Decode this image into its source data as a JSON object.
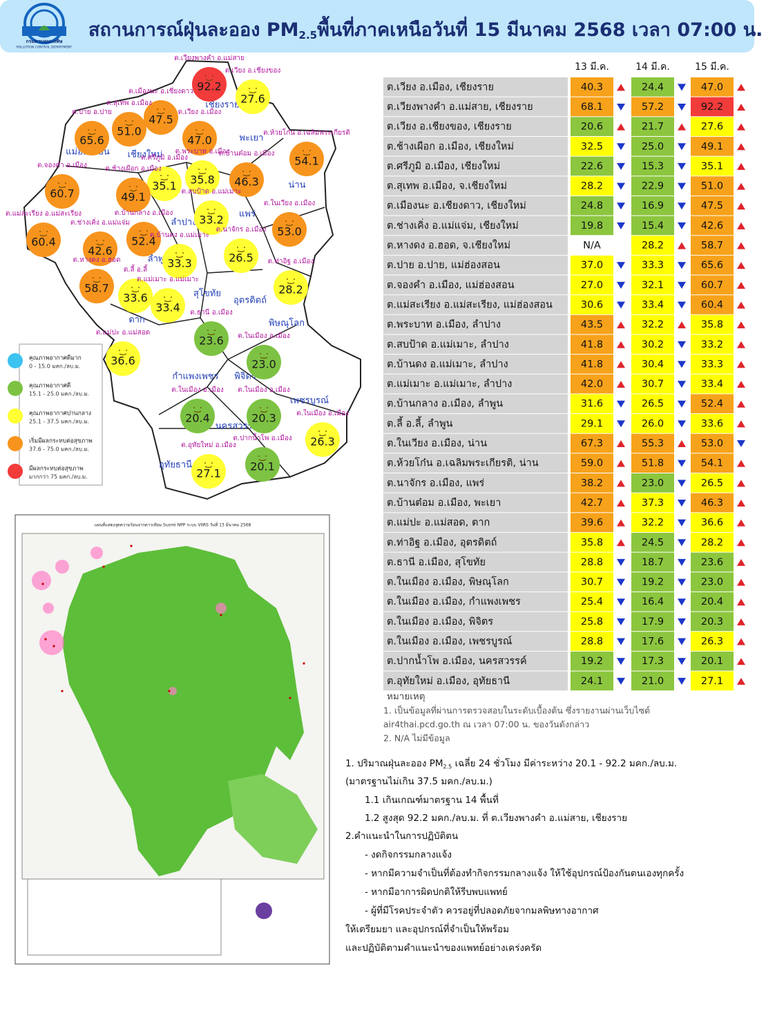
{
  "header": {
    "logo_th": "กรมควบคุมมลพิษ",
    "logo_en": "POLLUTION CONTROL DEPARTMENT",
    "title": "สถานการณ์ฝุ่นละออง PM",
    "title_sub": "2.5",
    "title_rest": "พื้นที่ภาคเหนือวันที่ 15 มีนาคม 2568 เวลา 07:00 น."
  },
  "map": {
    "provinces": [
      "เชียงราย",
      "พะเยา",
      "แม่ฮ่องสอน",
      "เชียงใหม่",
      "น่าน",
      "ลำปาง",
      "แพร่",
      "ลำพูน",
      "อุตรดิตถ์",
      "สุโขทัย",
      "ตาก",
      "พิษณุโลก",
      "กำแพงเพชร",
      "พิจิตร",
      "นครสวรรค์",
      "เพชรบูรณ์",
      "อุทัยธานี"
    ],
    "stations": [
      {
        "label": "ต.เวียงพางคำ อ.แม่สาย",
        "value": "92.2",
        "color": "#f23b3b"
      },
      {
        "label": "ต.เวียง อ.เชียงของ",
        "value": "27.6",
        "color": "#ffff33"
      },
      {
        "label": "ต.เมืองนะ อ.เชียงดาว",
        "value": "47.5",
        "color": "#f7941d"
      },
      {
        "label": "ต.สุเทพ อ.เมือง",
        "value": "51.0",
        "color": "#f7941d"
      },
      {
        "label": "ต.ปาย อ.ปาย",
        "value": "65.6",
        "color": "#f7941d"
      },
      {
        "label": "ต.เวียง อ.เมือง",
        "value": "47.0",
        "color": "#f7941d"
      },
      {
        "label": "ต.ห้วยโก๋น อ.เฉลิมพระเกียรติ",
        "value": "54.1",
        "color": "#f7941d"
      },
      {
        "label": "ต.ศรีภูมิ อ.เมือง",
        "value": "35.1",
        "color": "#ffff33"
      },
      {
        "label": "ต.ช้างเผือก อ.เมือง",
        "value": "49.1",
        "color": "#f7941d"
      },
      {
        "label": "ต.พระบาท อ.เมือง",
        "value": "35.8",
        "color": "#ffff33"
      },
      {
        "label": "ต.บ้านต๋อม อ.เมือง",
        "value": "46.3",
        "color": "#f7941d"
      },
      {
        "label": "ต.จองคำ อ.เมือง",
        "value": "60.7",
        "color": "#f7941d"
      },
      {
        "label": "ต.สบป้าด อ.แม่เมาะ",
        "value": "33.2",
        "color": "#ffff33"
      },
      {
        "label": "ต.ในเวียง อ.เมือง",
        "value": "53.0",
        "color": "#f7941d"
      },
      {
        "label": "ต.แม่สะเรียง อ.แม่สะเรียง",
        "value": "60.4",
        "color": "#f7941d"
      },
      {
        "label": "ต.ช่างเคิ่ง อ.แม่แจ่ม",
        "value": "42.6",
        "color": "#f7941d"
      },
      {
        "label": "ต.บ้านกลาง อ.เมือง",
        "value": "52.4",
        "color": "#f7941d"
      },
      {
        "label": "ต.บ้านดง อ.แม่เมาะ",
        "value": "33.3",
        "color": "#ffff33"
      },
      {
        "label": "ต.นาจักร อ.เมือง",
        "value": "26.5",
        "color": "#ffff33"
      },
      {
        "label": "ต.หางดง อ.ฮอด",
        "value": "58.7",
        "color": "#f7941d"
      },
      {
        "label": "ต.ลี้ อ.ลี้",
        "value": "33.6",
        "color": "#ffff33"
      },
      {
        "label": "ต.แม่เมาะ อ.แม่เมาะ",
        "value": "33.4",
        "color": "#ffff33"
      },
      {
        "label": "ต.ท่าอิฐ อ.เมือง",
        "value": "28.2",
        "color": "#ffff33"
      },
      {
        "label": "ต.ธานี อ.เมือง",
        "value": "23.6",
        "color": "#7dc242"
      },
      {
        "label": "ต.แม่ปะ อ.แม่สอด",
        "value": "36.6",
        "color": "#ffff33"
      },
      {
        "label": "ต.ในเมือง อ.เมือง",
        "value": "23.0",
        "color": "#7dc242"
      },
      {
        "label": "ต.ในเมือง อ.เมือง",
        "value": "20.4",
        "color": "#7dc242"
      },
      {
        "label": "ต.ในเมือง อ.เมือง",
        "value": "20.3",
        "color": "#7dc242"
      },
      {
        "label": "ต.ในเมือง อ.เมือง",
        "value": "26.3",
        "color": "#ffff33"
      },
      {
        "label": "ต.ปากน้ำโพ อ.เมือง",
        "value": "20.1",
        "color": "#7dc242"
      },
      {
        "label": "ต.อุทัยใหม่ อ.เมือง",
        "value": "27.1",
        "color": "#ffff33"
      }
    ],
    "legend": [
      {
        "label": "คุณภาพอากาศดีมาก",
        "range": "0 - 15.0 มคก./ลบ.ม.",
        "color": "#3cc3f0"
      },
      {
        "label": "คุณภาพอากาศดี",
        "range": "15.1 - 25.0 มคก./ลบ.ม.",
        "color": "#7dc242"
      },
      {
        "label": "คุณภาพอากาศปานกลาง",
        "range": "25.1 - 37.5 มคก./ลบ.ม.",
        "color": "#ffff33"
      },
      {
        "label": "เริ่มมีผลกระทบต่อสุขภาพ",
        "range": "37.6 - 75.0 มคก./ลบ.ม.",
        "color": "#f7941d"
      },
      {
        "label": "มีผลกระทบต่อสุขภาพ",
        "range": "มากกว่า 75 มคก./ลบ.ม.",
        "color": "#f23b3b"
      }
    ]
  },
  "satellite_map": {
    "title": "แผนที่แสดงจุดความร้อนจากดาวเทียม Suomi NPP ระบบ VIIRS  วันที่ 13 มีนาคม 2568"
  },
  "table": {
    "columns": [
      "13 มี.ค.",
      "14 มี.ค.",
      "15 มี.ค."
    ],
    "rows": [
      {
        "station": "ต.เวียง อ.เมือง, เชียงราย",
        "values": [
          "40.3",
          "24.4",
          "47.0"
        ],
        "colors": [
          "#f7a21b",
          "#8cc63f",
          "#f7a21b"
        ],
        "trends": [
          "up",
          "down",
          "up"
        ]
      },
      {
        "station": "ต.เวียงพางคำ อ.แม่สาย, เชียงราย",
        "values": [
          "68.1",
          "57.2",
          "92.2"
        ],
        "colors": [
          "#f7a21b",
          "#f7a21b",
          "#f23b3b"
        ],
        "trends": [
          "down",
          "down",
          "up"
        ]
      },
      {
        "station": "ต.เวียง อ.เชียงของ, เชียงราย",
        "values": [
          "20.6",
          "21.7",
          "27.6"
        ],
        "colors": [
          "#8cc63f",
          "#8cc63f",
          "#ffff00"
        ],
        "trends": [
          "up",
          "up",
          "up"
        ]
      },
      {
        "station": "ต.ช้างเผือก อ.เมือง, เชียงใหม่",
        "values": [
          "32.5",
          "25.0",
          "49.1"
        ],
        "colors": [
          "#ffff00",
          "#8cc63f",
          "#f7a21b"
        ],
        "trends": [
          "down",
          "down",
          "up"
        ]
      },
      {
        "station": "ต.ศรีภูมิ อ.เมือง, เชียงใหม่",
        "values": [
          "22.6",
          "15.3",
          "35.1"
        ],
        "colors": [
          "#8cc63f",
          "#8cc63f",
          "#ffff00"
        ],
        "trends": [
          "down",
          "down",
          "up"
        ]
      },
      {
        "station": "ต.สุเทพ  อ.เมือง, จ.เชียงใหม่",
        "values": [
          "28.2",
          "22.9",
          "51.0"
        ],
        "colors": [
          "#ffff00",
          "#8cc63f",
          "#f7a21b"
        ],
        "trends": [
          "down",
          "down",
          "up"
        ]
      },
      {
        "station": "ต.เมืองนะ อ.เชียงดาว, เชียงใหม่",
        "values": [
          "24.8",
          "16.9",
          "47.5"
        ],
        "colors": [
          "#8cc63f",
          "#8cc63f",
          "#f7a21b"
        ],
        "trends": [
          "down",
          "down",
          "up"
        ]
      },
      {
        "station": "ต.ช่างเคิ่ง อ.แม่แจ่ม, เชียงใหม่",
        "values": [
          "19.8",
          "15.4",
          "42.6"
        ],
        "colors": [
          "#8cc63f",
          "#8cc63f",
          "#f7a21b"
        ],
        "trends": [
          "down",
          "down",
          "up"
        ]
      },
      {
        "station": "ต.หางดง อ.ฮอด, จ.เชียงใหม่",
        "values": [
          "N/A",
          "28.2",
          "58.7"
        ],
        "colors": [
          "#ffffff",
          "#ffff00",
          "#f7a21b"
        ],
        "trends": [
          null,
          "up",
          "up"
        ]
      },
      {
        "station": "ต.ปาย อ.ปาย, แม่ฮ่องสอน",
        "values": [
          "37.0",
          "33.3",
          "65.6"
        ],
        "colors": [
          "#ffff00",
          "#ffff00",
          "#f7a21b"
        ],
        "trends": [
          "down",
          "down",
          "up"
        ]
      },
      {
        "station": "ต.จองคำ อ.เมือง, แม่ฮ่องสอน",
        "values": [
          "27.0",
          "32.1",
          "60.7"
        ],
        "colors": [
          "#ffff00",
          "#ffff00",
          "#f7a21b"
        ],
        "trends": [
          "down",
          "down",
          "up"
        ]
      },
      {
        "station": "ต.แม่สะเรียง อ.แม่สะเรียง, แม่ฮ่องสอน",
        "values": [
          "30.6",
          "33.4",
          "60.4"
        ],
        "colors": [
          "#ffff00",
          "#ffff00",
          "#f7a21b"
        ],
        "trends": [
          "down",
          "down",
          "up"
        ]
      },
      {
        "station": "ต.พระบาท อ.เมือง, ลำปาง",
        "values": [
          "43.5",
          "32.2",
          "35.8"
        ],
        "colors": [
          "#f7a21b",
          "#ffff00",
          "#ffff00"
        ],
        "trends": [
          "up",
          "up",
          "up"
        ]
      },
      {
        "station": "ต.สบป้าด อ.แม่เมาะ, ลำปาง",
        "values": [
          "41.8",
          "30.2",
          "33.2"
        ],
        "colors": [
          "#f7a21b",
          "#ffff00",
          "#ffff00"
        ],
        "trends": [
          "up",
          "down",
          "up"
        ]
      },
      {
        "station": "ต.บ้านดง อ.แม่เมาะ, ลำปาง",
        "values": [
          "41.8",
          "30.4",
          "33.3"
        ],
        "colors": [
          "#f7a21b",
          "#ffff00",
          "#ffff00"
        ],
        "trends": [
          "up",
          "down",
          "up"
        ]
      },
      {
        "station": "ต.แม่เมาะ อ.แม่เมาะ, ลำปาง",
        "values": [
          "42.0",
          "30.7",
          "33.4"
        ],
        "colors": [
          "#f7a21b",
          "#ffff00",
          "#ffff00"
        ],
        "trends": [
          "up",
          "down",
          "up"
        ]
      },
      {
        "station": "ต.บ้านกลาง อ.เมือง, ลำพูน",
        "values": [
          "31.6",
          "26.5",
          "52.4"
        ],
        "colors": [
          "#ffff00",
          "#ffff00",
          "#f7a21b"
        ],
        "trends": [
          "down",
          "down",
          "up"
        ]
      },
      {
        "station": "ต.ลี้ อ.ลี้, ลำพูน",
        "values": [
          "29.1",
          "26.0",
          "33.6"
        ],
        "colors": [
          "#ffff00",
          "#ffff00",
          "#ffff00"
        ],
        "trends": [
          "down",
          "down",
          "up"
        ]
      },
      {
        "station": "ต.ในเวียง อ.เมือง, น่าน",
        "values": [
          "67.3",
          "55.3",
          "53.0"
        ],
        "colors": [
          "#f7a21b",
          "#f7a21b",
          "#f7a21b"
        ],
        "trends": [
          "up",
          "up",
          "down"
        ]
      },
      {
        "station": "ต.ห้วยโก๋น อ.เฉลิมพระเกียรติ, น่าน",
        "values": [
          "59.0",
          "51.8",
          "54.1"
        ],
        "colors": [
          "#f7a21b",
          "#f7a21b",
          "#f7a21b"
        ],
        "trends": [
          "up",
          "down",
          "up"
        ]
      },
      {
        "station": "ต.นาจักร อ.เมือง, แพร่",
        "values": [
          "38.2",
          "23.0",
          "26.5"
        ],
        "colors": [
          "#f7a21b",
          "#8cc63f",
          "#ffff00"
        ],
        "trends": [
          "up",
          "down",
          "up"
        ]
      },
      {
        "station": "ต.บ้านต๋อม อ.เมือง, พะเยา",
        "values": [
          "42.7",
          "37.3",
          "46.3"
        ],
        "colors": [
          "#f7a21b",
          "#ffff00",
          "#f7a21b"
        ],
        "trends": [
          "up",
          "down",
          "up"
        ]
      },
      {
        "station": "ต.แม่ปะ อ.แม่สอด, ตาก",
        "values": [
          "39.6",
          "32.2",
          "36.6"
        ],
        "colors": [
          "#f7a21b",
          "#ffff00",
          "#ffff00"
        ],
        "trends": [
          "up",
          "down",
          "up"
        ]
      },
      {
        "station": "ต.ท่าอิฐ อ.เมือง, อุตรดิตถ์",
        "values": [
          "35.8",
          "24.5",
          "28.2"
        ],
        "colors": [
          "#ffff00",
          "#8cc63f",
          "#ffff00"
        ],
        "trends": [
          "up",
          "down",
          "up"
        ]
      },
      {
        "station": "ต.ธานี อ.เมือง, สุโขทัย",
        "values": [
          "28.8",
          "18.7",
          "23.6"
        ],
        "colors": [
          "#ffff00",
          "#8cc63f",
          "#8cc63f"
        ],
        "trends": [
          "down",
          "down",
          "up"
        ]
      },
      {
        "station": "ต.ในเมือง อ.เมือง, พิษณุโลก",
        "values": [
          "30.7",
          "19.2",
          "23.0"
        ],
        "colors": [
          "#ffff00",
          "#8cc63f",
          "#8cc63f"
        ],
        "trends": [
          "down",
          "down",
          "up"
        ]
      },
      {
        "station": "ต.ในเมือง อ.เมือง, กำแพงเพชร",
        "values": [
          "25.4",
          "16.4",
          "20.4"
        ],
        "colors": [
          "#ffff00",
          "#8cc63f",
          "#8cc63f"
        ],
        "trends": [
          "down",
          "down",
          "up"
        ]
      },
      {
        "station": "ต.ในเมือง อ.เมือง, พิจิตร",
        "values": [
          "25.8",
          "17.9",
          "20.3"
        ],
        "colors": [
          "#ffff00",
          "#8cc63f",
          "#8cc63f"
        ],
        "trends": [
          "down",
          "down",
          "up"
        ]
      },
      {
        "station": "ต.ในเมือง อ.เมือง, เพชรบูรณ์",
        "values": [
          "28.8",
          "17.6",
          "26.3"
        ],
        "colors": [
          "#ffff00",
          "#8cc63f",
          "#ffff00"
        ],
        "trends": [
          "down",
          "down",
          "up"
        ]
      },
      {
        "station": "ต.ปากน้ำโพ อ.เมือง, นครสวรรค์",
        "values": [
          "19.2",
          "17.3",
          "20.1"
        ],
        "colors": [
          "#8cc63f",
          "#8cc63f",
          "#8cc63f"
        ],
        "trends": [
          "down",
          "down",
          "up"
        ]
      },
      {
        "station": "ต.อุทัยใหม่ อ.เมือง, อุทัยธานี",
        "values": [
          "24.1",
          "21.0",
          "27.1"
        ],
        "colors": [
          "#8cc63f",
          "#8cc63f",
          "#ffff00"
        ],
        "trends": [
          "down",
          "down",
          "up"
        ]
      }
    ]
  },
  "notes": {
    "title": "หมายเหตุ",
    "lines": [
      "1. เป็นข้อมูลที่ผ่านการตรวจสอบในระดับเบื้องต้น  ซึ่งรายงานผ่านเว็บไซต์",
      "air4thai.pcd.go.th  ณ  เวลา 07:00  น.  ของวันดังกล่าว",
      "2.  N/A  ไม่มีข้อมูล"
    ]
  },
  "summary": {
    "pm_line": {
      "pre": "1. ปริมาณฝุ่นละออง PM",
      "sub": "2.5",
      "post": " เฉลี่ย 24 ชั่วโมง มีค่าระหว่าง 20.1 - 92.2 มคก./ลบ.ม."
    },
    "lines": [
      "(มาตรฐานไม่เกิน 37.5 มคก./ลบ.ม.)",
      "1.1 เกินเกณฑ์มาตรฐาน 14 พื้นที่",
      "1.2 สูงสุด 92.2  มคก./ลบ.ม.  ที่  ต.เวียงพางคำ  อ.แม่สาย,  เชียงราย",
      "2.คำแนะนำในการปฏิบัติตน",
      "-   งดกิจกรรมกลางแจ้ง",
      "-   หากมีความจำเป็นที่ต้องทำกิจกรรมกลางแจ้ง  ให้ใช้อุปกรณ์ป้องกันตนเองทุกครั้ง",
      "-   หากมีอาการผิดปกติให้รีบพบแพทย์",
      "-   ผู้ที่มีโรคประจำตัว  ควรอยู่ที่ปลอดภัยจากมลพิษทางอากาศ",
      "ให้เตรียมยา  และอุปกรณ์ที่จำเป็นให้พร้อม",
      "และปฏิบัติตามคำแนะนำของแพทย์อย่างเคร่งครัด"
    ]
  }
}
